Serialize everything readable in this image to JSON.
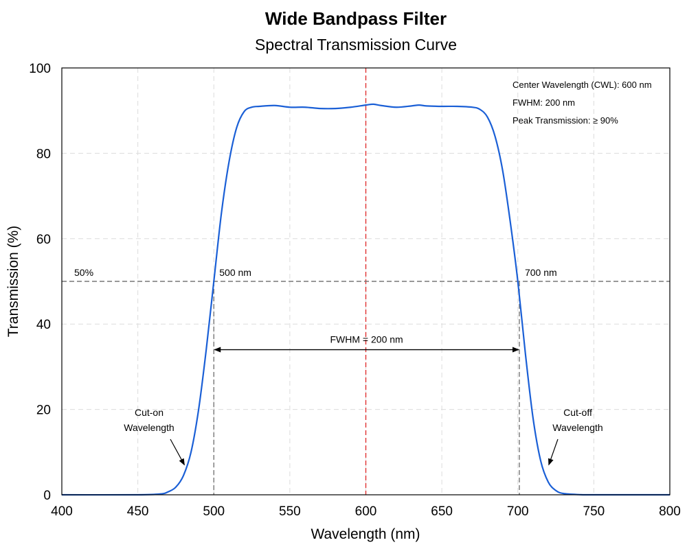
{
  "chart_data": {
    "type": "line",
    "title": "Wide Bandpass Filter",
    "subtitle": "Spectral Transmission Curve",
    "xlabel": "Wavelength (nm)",
    "ylabel": "Transmission (%)",
    "xlim": [
      400,
      800
    ],
    "ylim": [
      0,
      100
    ],
    "xticks": [
      400,
      450,
      500,
      550,
      600,
      650,
      700,
      750,
      800
    ],
    "yticks": [
      0,
      20,
      40,
      60,
      80,
      100
    ],
    "grid": true,
    "series": [
      {
        "color": "#1a5fd6",
        "x": [
          400,
          450,
          465,
          470,
          475,
          480,
          485,
          490,
          495,
          500,
          505,
          510,
          515,
          520,
          525,
          530,
          540,
          550,
          560,
          570,
          580,
          590,
          600,
          605,
          610,
          620,
          630,
          635,
          640,
          650,
          660,
          670,
          675,
          680,
          685,
          690,
          695,
          700,
          705,
          710,
          715,
          720,
          725,
          730,
          740,
          750,
          800
        ],
        "y": [
          0,
          0,
          0.2,
          0.7,
          1.8,
          4.5,
          10,
          20,
          34,
          50,
          66,
          78,
          86,
          89.8,
          90.8,
          91,
          91.2,
          90.8,
          90.8,
          90.5,
          90.5,
          90.8,
          91.3,
          91.5,
          91.2,
          90.8,
          91.1,
          91.3,
          91.1,
          91,
          91,
          90.8,
          90.3,
          88.5,
          84,
          76,
          64,
          50,
          33,
          18,
          8,
          3,
          1,
          0.3,
          0.05,
          0,
          0
        ]
      }
    ],
    "reference_lines": [
      {
        "orientation": "vertical",
        "x": 600,
        "color": "#e03030",
        "style": "dashed"
      },
      {
        "orientation": "horizontal",
        "y": 50,
        "color": "#777777",
        "style": "dashed",
        "label": "50%"
      },
      {
        "orientation": "vertical",
        "x": 500,
        "y_to": 50,
        "color": "#777777",
        "style": "dashed",
        "label": "500 nm"
      },
      {
        "orientation": "vertical",
        "x": 701,
        "y_to": 50,
        "color": "#777777",
        "style": "dashed",
        "label": "700 nm"
      }
    ],
    "fwhm_arrow": {
      "x1": 500,
      "x2": 701,
      "y": 34,
      "label": "FWHM = 200 nm"
    },
    "annotations": [
      {
        "text": [
          "Cut-on",
          "Wavelength"
        ],
        "arrow_to": [
          482,
          7
        ]
      },
      {
        "text": [
          "Cut-off",
          "Wavelength"
        ],
        "arrow_to": [
          719,
          7
        ]
      }
    ],
    "info_box": [
      "Center Wavelength (CWL): 600 nm",
      "FWHM: 200 nm",
      "Peak Transmission: ≥ 90%"
    ]
  }
}
